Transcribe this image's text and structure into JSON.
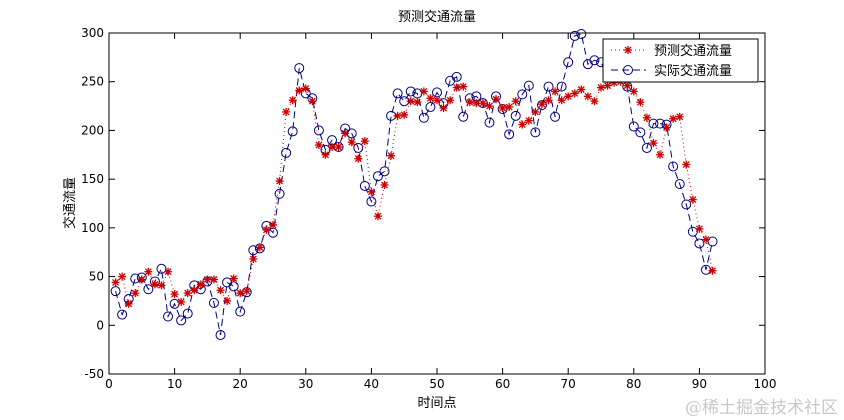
{
  "chart_data": {
    "type": "line",
    "title": "预测交通流量",
    "xlabel": "时间点",
    "ylabel": "交通流量",
    "xlim": [
      0,
      100
    ],
    "ylim": [
      -50,
      300
    ],
    "xticks": [
      0,
      10,
      20,
      30,
      40,
      50,
      60,
      70,
      80,
      90,
      100
    ],
    "yticks": [
      -50,
      0,
      50,
      100,
      150,
      200,
      250,
      300
    ],
    "grid": false,
    "legend_position": "top-right",
    "x": [
      1,
      2,
      3,
      4,
      5,
      6,
      7,
      8,
      9,
      10,
      11,
      12,
      13,
      14,
      15,
      16,
      17,
      18,
      19,
      20,
      21,
      22,
      23,
      24,
      25,
      26,
      27,
      28,
      29,
      30,
      31,
      32,
      33,
      34,
      35,
      36,
      37,
      38,
      39,
      40,
      41,
      42,
      43,
      44,
      45,
      46,
      47,
      48,
      49,
      50,
      51,
      52,
      53,
      54,
      55,
      56,
      57,
      58,
      59,
      60,
      61,
      62,
      63,
      64,
      65,
      66,
      67,
      68,
      69,
      70,
      71,
      72,
      73,
      74,
      75,
      76,
      77,
      78,
      79,
      80,
      81,
      82,
      83,
      84,
      85,
      86,
      87,
      88,
      89,
      90,
      91,
      92
    ],
    "series": [
      {
        "name": "预测交通流量",
        "color": "#cc0000",
        "line_style": "dotted",
        "marker": "star",
        "values": [
          44,
          50,
          22,
          33,
          47,
          55,
          42,
          41,
          55,
          32,
          24,
          33,
          36,
          42,
          47,
          47,
          36,
          25,
          48,
          33,
          35,
          68,
          80,
          98,
          103,
          148,
          219,
          231,
          241,
          243,
          230,
          185,
          175,
          183,
          183,
          197,
          188,
          171,
          189,
          137,
          112,
          144,
          174,
          215,
          216,
          230,
          229,
          240,
          233,
          231,
          223,
          231,
          244,
          245,
          229,
          228,
          228,
          225,
          232,
          223,
          224,
          230,
          206,
          210,
          219,
          227,
          231,
          240,
          231,
          235,
          238,
          242,
          235,
          230,
          244,
          246,
          249,
          250,
          246,
          240,
          229,
          213,
          187,
          175,
          203,
          212,
          214,
          165,
          129,
          99,
          88,
          56
        ]
      },
      {
        "name": "实际交通流量",
        "color": "#000080",
        "line_style": "dashed",
        "marker": "circle",
        "values": [
          35,
          11,
          27,
          48,
          49,
          37,
          45,
          58,
          9,
          22,
          5,
          12,
          41,
          37,
          45,
          23,
          -10,
          44,
          40,
          14,
          34,
          77,
          79,
          102,
          95,
          135,
          177,
          199,
          264,
          238,
          233,
          200,
          180,
          190,
          183,
          202,
          197,
          182,
          143,
          127,
          153,
          158,
          215,
          238,
          230,
          240,
          238,
          213,
          224,
          239,
          228,
          251,
          255,
          214,
          233,
          235,
          228,
          208,
          235,
          222,
          196,
          215,
          237,
          246,
          198,
          226,
          245,
          214,
          245,
          270,
          297,
          299,
          268,
          272,
          270,
          255,
          260,
          260,
          245,
          204,
          198,
          182,
          207,
          207,
          206,
          163,
          145,
          124,
          96,
          84,
          57,
          86
        ]
      }
    ]
  },
  "watermark": "@稀土掘金技术社区"
}
